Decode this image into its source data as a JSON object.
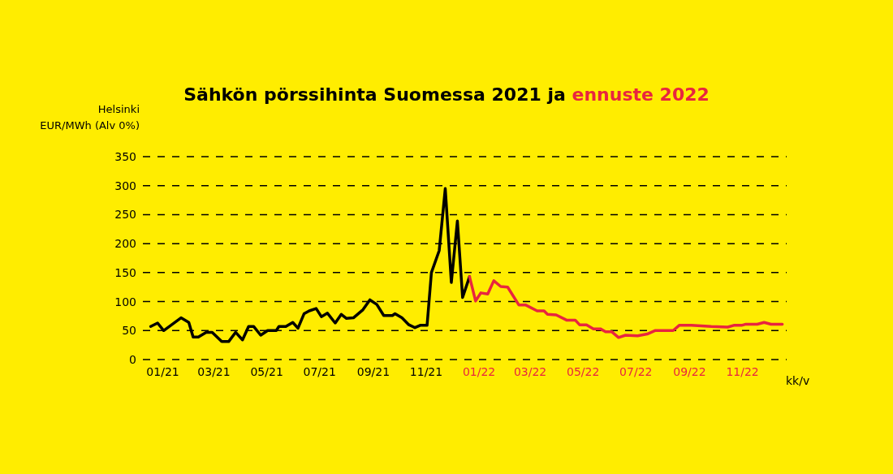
{
  "chart_data": {
    "type": "line",
    "title": "Sähkön pörssihinta Suomessa 2021 ja ennuste 2022",
    "ylabel": "Helsinki\nEUR/MWh (Alv 0%)",
    "xlabel": "kk/v",
    "xlim": [
      "2020-12-23",
      "2023-01-05"
    ],
    "xticks": [
      {
        "value": "2021-01-15",
        "label": "01/21"
      },
      {
        "value": "2021-03-15",
        "label": "03/21"
      },
      {
        "value": "2021-05-15",
        "label": "05/21"
      },
      {
        "value": "2021-07-15",
        "label": "07/21"
      },
      {
        "value": "2021-09-15",
        "label": "09/21"
      },
      {
        "value": "2021-11-15",
        "label": "11/21"
      },
      {
        "value": "2022-01-15",
        "label": "01/22"
      },
      {
        "value": "2022-03-15",
        "label": "03/22"
      },
      {
        "value": "2022-05-15",
        "label": "05/22"
      },
      {
        "value": "2022-07-15",
        "label": "07/22"
      },
      {
        "value": "2022-09-15",
        "label": "09/22"
      },
      {
        "value": "2022-11-15",
        "label": "11/22"
      }
    ],
    "ylim": [
      0,
      350
    ],
    "yticks": [
      0,
      50,
      100,
      150,
      200,
      250,
      300,
      350
    ],
    "grid": "y",
    "marker": "none",
    "line_style": "solid",
    "series": [
      {
        "color": "#000000",
        "x": [
          "2021-01-01",
          "2021-01-09",
          "2021-01-16",
          "2021-02-05",
          "2021-02-14",
          "2021-02-19",
          "2021-02-25",
          "2021-03-06",
          "2021-03-13",
          "2021-03-24",
          "2021-04-01",
          "2021-04-09",
          "2021-04-17",
          "2021-04-24",
          "2021-04-30",
          "2021-05-08",
          "2021-05-16",
          "2021-05-26",
          "2021-05-29",
          "2021-06-06",
          "2021-06-14",
          "2021-06-20",
          "2021-06-27",
          "2021-07-03",
          "2021-07-11",
          "2021-07-17",
          "2021-07-24",
          "2021-08-02",
          "2021-08-09",
          "2021-08-15",
          "2021-08-23",
          "2021-09-03",
          "2021-09-11",
          "2021-09-19",
          "2021-09-27",
          "2021-10-07",
          "2021-10-10",
          "2021-10-18",
          "2021-10-26",
          "2021-11-02",
          "2021-11-08",
          "2021-11-16",
          "2021-11-21",
          "2021-11-30",
          "2021-12-07",
          "2021-12-14",
          "2021-12-21",
          "2021-12-27",
          "2022-01-04"
        ],
        "values": [
          57,
          63,
          50,
          72,
          64,
          39,
          39,
          47,
          47,
          31,
          31,
          47,
          34,
          57,
          57,
          42,
          50,
          50,
          57,
          57,
          64,
          54,
          79,
          84,
          88,
          74,
          80,
          63,
          78,
          71,
          72,
          86,
          103,
          95,
          76,
          76,
          79,
          72,
          60,
          55,
          59,
          59,
          150,
          188,
          295,
          133,
          239,
          107,
          143
        ]
      },
      {
        "color": "#e8253f",
        "x": [
          "2022-01-04",
          "2022-01-11",
          "2022-01-17",
          "2022-01-25",
          "2022-02-01",
          "2022-02-09",
          "2022-02-17",
          "2022-03-02",
          "2022-03-10",
          "2022-03-23",
          "2022-03-31",
          "2022-04-04",
          "2022-04-14",
          "2022-04-26",
          "2022-05-06",
          "2022-05-11",
          "2022-05-19",
          "2022-05-27",
          "2022-06-04",
          "2022-06-10",
          "2022-06-17",
          "2022-06-25",
          "2022-07-03",
          "2022-07-17",
          "2022-07-28",
          "2022-08-06",
          "2022-08-27",
          "2022-09-03",
          "2022-09-17",
          "2022-10-10",
          "2022-10-29",
          "2022-11-05",
          "2022-11-14",
          "2022-11-19",
          "2022-12-02",
          "2022-12-10",
          "2022-12-18",
          "2022-12-31"
        ],
        "values": [
          143,
          101,
          115,
          113,
          136,
          126,
          125,
          94,
          94,
          84,
          84,
          78,
          77,
          68,
          68,
          60,
          60,
          53,
          53,
          48,
          48,
          38,
          42,
          41,
          44,
          50,
          50,
          59,
          59,
          57,
          56,
          59,
          59,
          61,
          61,
          64,
          61,
          61
        ]
      }
    ]
  }
}
